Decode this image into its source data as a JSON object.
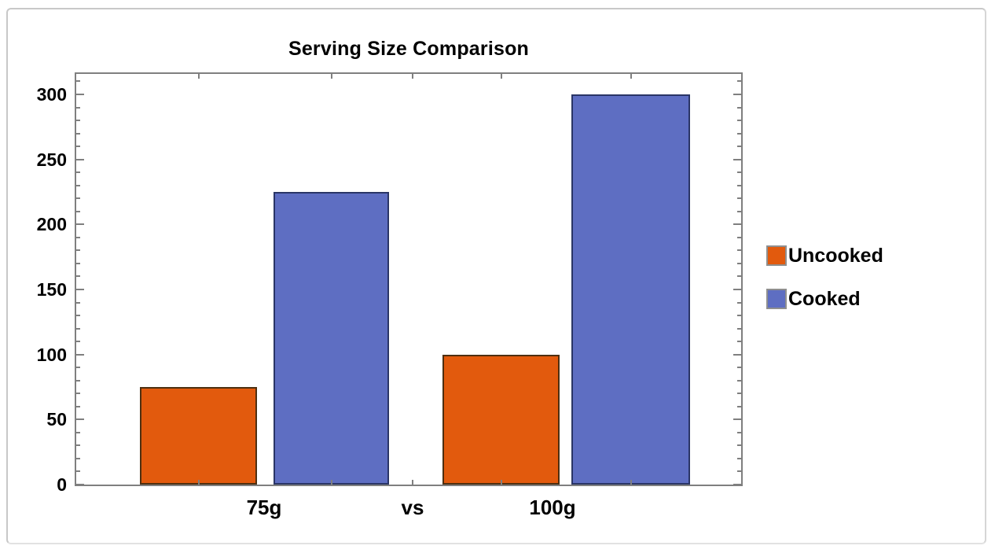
{
  "chart_data": {
    "type": "bar",
    "title": "Serving Size Comparison",
    "categories": [
      "75g",
      "100g"
    ],
    "separator_label": "vs",
    "x_axis_labels": [
      "75g",
      "vs",
      "100g"
    ],
    "series": [
      {
        "name": "Uncooked",
        "values": [
          75,
          100
        ],
        "color": "#E25A0D",
        "edge_color": "#4E2F10"
      },
      {
        "name": "Cooked",
        "values": [
          225,
          300
        ],
        "color": "#5E6EC2",
        "edge_color": "#2A3566"
      }
    ],
    "y_ticks": [
      0,
      50,
      100,
      150,
      200,
      250,
      300
    ],
    "y_minor_step": 10,
    "ylim": [
      0,
      316
    ],
    "xlabel": "",
    "ylabel": "",
    "grid": false,
    "frame": true,
    "legend": {
      "position": "right",
      "items": [
        {
          "label": "Uncooked",
          "color": "#E25A0D"
        },
        {
          "label": "Cooked",
          "color": "#5E6EC2"
        }
      ]
    }
  },
  "colors": {
    "frame": "#7f7f7f",
    "tick": "#7f7f7f",
    "text": "#000000",
    "background": "#ffffff",
    "card_border": "#c8c8c8",
    "legend_swatch_border": "#8f8f8f"
  }
}
